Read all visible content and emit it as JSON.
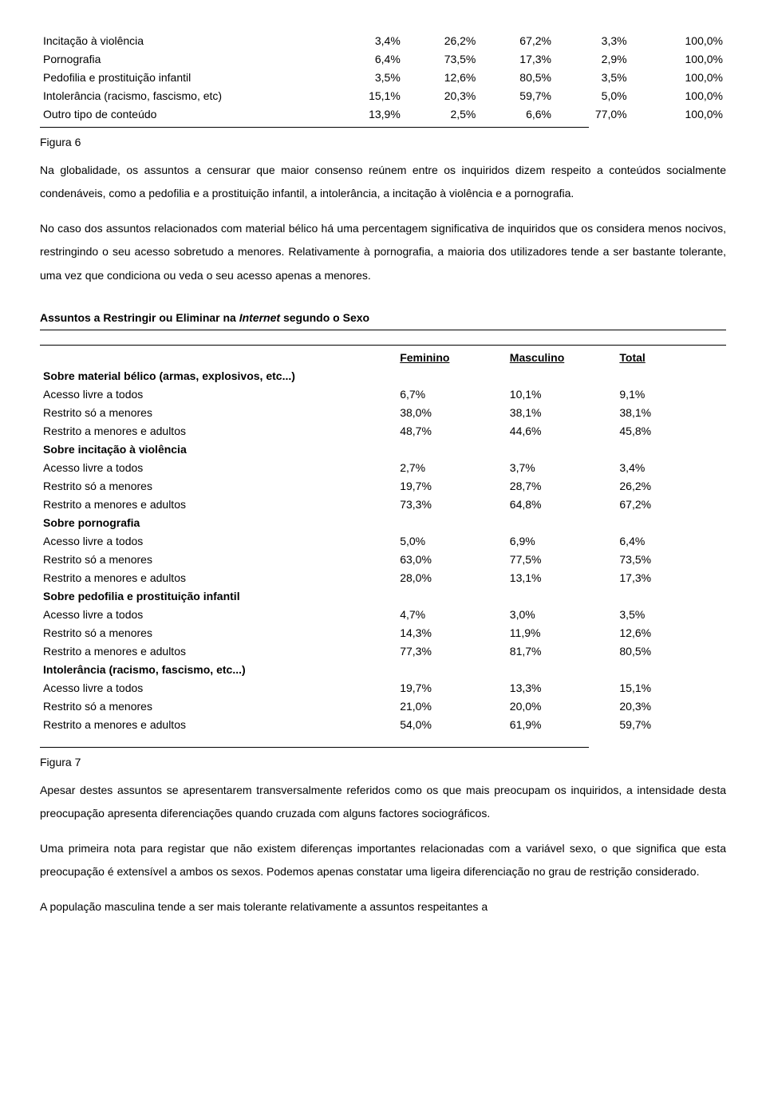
{
  "table1": {
    "rows": [
      {
        "label": "Incitação à violência",
        "c1": "3,4%",
        "c2": "26,2%",
        "c3": "67,2%",
        "c4": "3,3%",
        "c5": "100,0%"
      },
      {
        "label": "Pornografia",
        "c1": "6,4%",
        "c2": "73,5%",
        "c3": "17,3%",
        "c4": "2,9%",
        "c5": "100,0%"
      },
      {
        "label": "Pedofilia e prostituição infantil",
        "c1": "3,5%",
        "c2": "12,6%",
        "c3": "80,5%",
        "c4": "3,5%",
        "c5": "100,0%"
      },
      {
        "label": "Intolerância (racismo, fascismo, etc)",
        "c1": "15,1%",
        "c2": "20,3%",
        "c3": "59,7%",
        "c4": "5,0%",
        "c5": "100,0%"
      },
      {
        "label": "Outro tipo de conteúdo",
        "c1": "13,9%",
        "c2": "2,5%",
        "c3": "6,6%",
        "c4": "77,0%",
        "c5": "100,0%"
      }
    ]
  },
  "fig6": "Figura 6",
  "para1": "Na globalidade, os assuntos a censurar que maior consenso reúnem entre os inquiridos dizem respeito a conteúdos socialmente condenáveis, como a pedofilia e a prostituição infantil, a intolerância, a incitação à violência e a pornografia.",
  "para2": "No caso dos assuntos relacionados com material bélico há uma percentagem significativa de inquiridos que os considera menos nocivos, restringindo o seu acesso sobretudo a menores. Relativamente à pornografia, a maioria dos utilizadores tende a ser bastante tolerante, uma vez que condiciona ou veda o seu acesso apenas a menores.",
  "section2_title": "Assuntos a Restringir ou Eliminar na ",
  "section2_title_em": "Internet",
  "section2_title_tail": " segundo o Sexo",
  "table2": {
    "headers": {
      "c1": "Feminino",
      "c2": "Masculino",
      "c3": "Total"
    },
    "groups": [
      {
        "title": "Sobre material bélico (armas, explosivos, etc...)",
        "rows": [
          {
            "label": "Acesso livre a todos",
            "c1": "6,7%",
            "c2": "10,1%",
            "c3": "9,1%"
          },
          {
            "label": "Restrito só a menores",
            "c1": "38,0%",
            "c2": "38,1%",
            "c3": "38,1%"
          },
          {
            "label": "Restrito a menores e adultos",
            "c1": "48,7%",
            "c2": "44,6%",
            "c3": "45,8%"
          }
        ]
      },
      {
        "title": "Sobre incitação à violência",
        "rows": [
          {
            "label": "Acesso livre a todos",
            "c1": "2,7%",
            "c2": "3,7%",
            "c3": "3,4%"
          },
          {
            "label": "Restrito só a menores",
            "c1": "19,7%",
            "c2": "28,7%",
            "c3": "26,2%"
          },
          {
            "label": "Restrito a menores e adultos",
            "c1": "73,3%",
            "c2": "64,8%",
            "c3": "67,2%"
          }
        ]
      },
      {
        "title": "Sobre pornografia",
        "rows": [
          {
            "label": "Acesso livre a todos",
            "c1": "5,0%",
            "c2": "6,9%",
            "c3": "6,4%"
          },
          {
            "label": "Restrito só a menores",
            "c1": "63,0%",
            "c2": "77,5%",
            "c3": "73,5%"
          },
          {
            "label": "Restrito a menores e adultos",
            "c1": "28,0%",
            "c2": "13,1%",
            "c3": "17,3%"
          }
        ]
      },
      {
        "title": "Sobre pedofilia e prostituição infantil",
        "rows": [
          {
            "label": "Acesso livre a todos",
            "c1": "4,7%",
            "c2": "3,0%",
            "c3": "3,5%"
          },
          {
            "label": "Restrito só a menores",
            "c1": "14,3%",
            "c2": "11,9%",
            "c3": "12,6%"
          },
          {
            "label": "Restrito a menores e adultos",
            "c1": "77,3%",
            "c2": "81,7%",
            "c3": "80,5%"
          }
        ]
      },
      {
        "title": "Intolerância (racismo, fascismo, etc...)",
        "rows": [
          {
            "label": "Acesso livre a todos",
            "c1": "19,7%",
            "c2": "13,3%",
            "c3": "15,1%"
          },
          {
            "label": "Restrito só a menores",
            "c1": "21,0%",
            "c2": "20,0%",
            "c3": "20,3%"
          },
          {
            "label": "Restrito a menores e adultos",
            "c1": "54,0%",
            "c2": "61,9%",
            "c3": "59,7%"
          }
        ]
      }
    ]
  },
  "fig7": "Figura 7",
  "para3": "Apesar destes assuntos se apresentarem transversalmente referidos como os que mais preocupam os inquiridos, a intensidade desta preocupação apresenta diferenciações quando cruzada com alguns factores sociográficos.",
  "para4": "Uma primeira nota para registar que não existem diferenças importantes relacionadas com a variável sexo, o que significa que esta preocupação é extensível a ambos os sexos. Podemos apenas constatar uma ligeira diferenciação no grau de restrição considerado.",
  "para5": "A população masculina tende a ser mais tolerante relativamente a assuntos respeitantes a"
}
